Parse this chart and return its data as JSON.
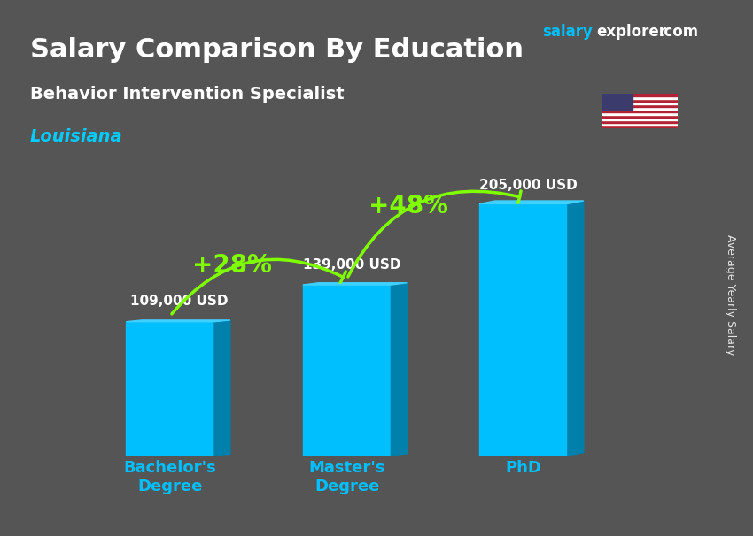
{
  "title": "Salary Comparison By Education",
  "subtitle": "Behavior Intervention Specialist",
  "location": "Louisiana",
  "ylabel": "Average Yearly Salary",
  "categories": [
    "Bachelor's\nDegree",
    "Master's\nDegree",
    "PhD"
  ],
  "values": [
    109000,
    139000,
    205000
  ],
  "value_labels": [
    "109,000 USD",
    "139,000 USD",
    "205,000 USD"
  ],
  "pct_labels": [
    "+28%",
    "+48%"
  ],
  "bar_color_main": "#00BFFF",
  "bar_color_dark": "#0080AA",
  "bar_color_light": "#40D0FF",
  "background_color": "#555555",
  "title_color": "#FFFFFF",
  "subtitle_color": "#FFFFFF",
  "location_color": "#00CCFF",
  "salary_label_color": "#FFFFFF",
  "pct_color": "#7FFF00",
  "arrow_color": "#7FFF00",
  "tick_color": "#00BFFF",
  "brand_salary": "salary",
  "brand_explorer": "explorer",
  "brand_com": ".com",
  "ylim_max": 240000,
  "figsize": [
    8.5,
    6.06
  ]
}
